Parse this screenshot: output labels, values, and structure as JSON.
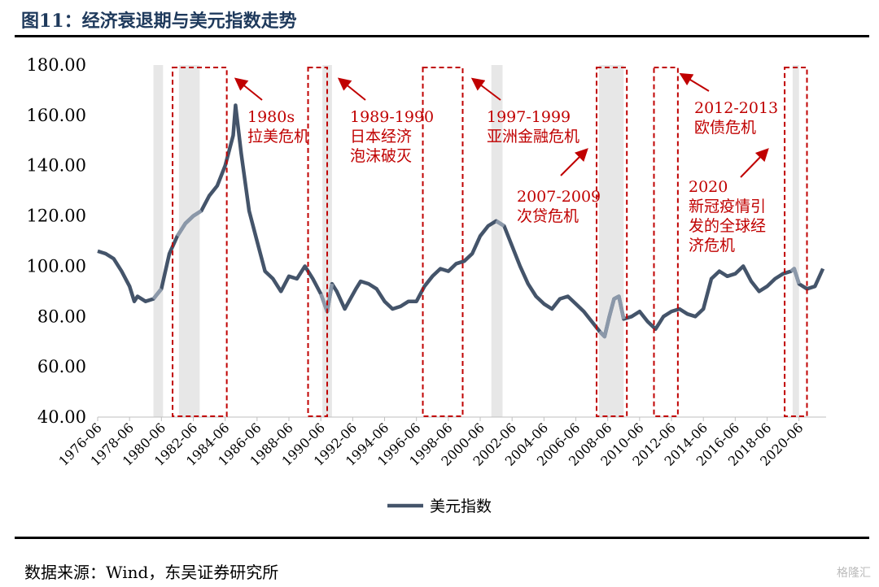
{
  "title": "图11：经济衰退期与美元指数走势",
  "source": "数据来源：Wind，东吴证券研究所",
  "watermark": "格隆汇",
  "colors": {
    "line": "#44546a",
    "line_light": "#8b98a9",
    "shade": "#e7e7e7",
    "box": "#c00000",
    "annot": "#c00000"
  },
  "chart_data": {
    "type": "line",
    "title": "",
    "xlabel": "",
    "ylabel": "",
    "ylim": [
      40,
      180
    ],
    "yticks": [
      "40.00",
      "60.00",
      "80.00",
      "100.00",
      "120.00",
      "140.00",
      "160.00",
      "180.00"
    ],
    "xlim": [
      1976.5,
      2022.2
    ],
    "xticks": [
      "1976-06",
      "1978-06",
      "1980-06",
      "1982-06",
      "1984-06",
      "1986-06",
      "1988-06",
      "1990-06",
      "1992-06",
      "1994-06",
      "1996-06",
      "1998-06",
      "2000-06",
      "2002-06",
      "2004-06",
      "2006-06",
      "2008-06",
      "2010-06",
      "2012-06",
      "2014-06",
      "2016-06",
      "2018-06",
      "2020-06"
    ],
    "legend": "bottom-center",
    "series": [
      {
        "name": "美元指数",
        "x": [
          1976.5,
          1977.0,
          1977.5,
          1978.0,
          1978.5,
          1978.8,
          1979.0,
          1979.5,
          1980.0,
          1980.5,
          1981.0,
          1981.5,
          1982.0,
          1982.5,
          1983.0,
          1983.5,
          1984.0,
          1984.5,
          1985.0,
          1985.15,
          1985.5,
          1986.0,
          1986.5,
          1987.0,
          1987.5,
          1988.0,
          1988.5,
          1989.0,
          1989.5,
          1990.0,
          1990.5,
          1990.9,
          1991.2,
          1991.5,
          1992.0,
          1992.7,
          1993.0,
          1993.5,
          1994.0,
          1994.5,
          1995.0,
          1995.5,
          1996.0,
          1996.5,
          1997.0,
          1997.5,
          1998.0,
          1998.5,
          1999.0,
          1999.5,
          2000.0,
          2000.5,
          2001.0,
          2001.5,
          2002.0,
          2002.5,
          2003.0,
          2003.5,
          2004.0,
          2004.5,
          2005.0,
          2005.5,
          2006.0,
          2006.5,
          2007.0,
          2007.5,
          2008.0,
          2008.3,
          2008.6,
          2008.9,
          2009.2,
          2009.5,
          2010.0,
          2010.5,
          2011.0,
          2011.5,
          2012.0,
          2012.5,
          2013.0,
          2013.5,
          2014.0,
          2014.5,
          2015.0,
          2015.5,
          2016.0,
          2016.5,
          2017.0,
          2017.5,
          2018.0,
          2018.5,
          2019.0,
          2019.5,
          2020.0,
          2020.2,
          2020.5,
          2021.0,
          2021.5,
          2022.0
        ],
        "values": [
          106,
          105,
          103,
          98,
          92,
          86,
          88,
          86,
          87,
          91,
          105,
          112,
          117,
          120,
          122,
          128,
          132,
          140,
          152,
          164,
          145,
          122,
          110,
          98,
          95,
          90,
          96,
          95,
          100,
          95,
          89,
          82,
          93,
          90,
          83,
          91,
          94,
          93,
          91,
          86,
          83,
          84,
          86,
          86,
          92,
          96,
          99,
          98,
          101,
          102,
          105,
          112,
          116,
          118,
          116,
          108,
          100,
          93,
          88,
          85,
          83,
          87,
          88,
          85,
          82,
          78,
          74,
          72,
          80,
          87,
          88,
          79,
          80,
          82,
          78,
          75,
          80,
          82,
          83,
          81,
          80,
          83,
          95,
          98,
          96,
          97,
          100,
          94,
          90,
          92,
          95,
          97,
          98,
          99,
          93,
          91,
          92,
          99
        ]
      }
    ],
    "recession_shading": [
      [
        1980.0,
        1980.6
      ],
      [
        1981.6,
        1982.9
      ],
      [
        1990.6,
        1991.2
      ],
      [
        2001.2,
        2001.9
      ],
      [
        2007.95,
        2009.5
      ],
      [
        2020.1,
        2020.5
      ]
    ],
    "highlight_boxes": [
      [
        1981.2,
        1984.6
      ],
      [
        1989.7,
        1990.9
      ],
      [
        1996.9,
        1999.4
      ],
      [
        2007.8,
        2009.7
      ],
      [
        2011.4,
        2012.9
      ],
      [
        2019.6,
        2021.0
      ]
    ],
    "annotations": [
      {
        "lines": [
          "1980s",
          "拉美危机"
        ]
      },
      {
        "lines": [
          "1989-1990",
          "日本经济",
          "泡沫破灭"
        ]
      },
      {
        "lines": [
          "1997-1999",
          "亚洲金融危机"
        ]
      },
      {
        "lines": [
          "2007-2009",
          "次贷危机"
        ]
      },
      {
        "lines": [
          "2012-2013",
          "欧债危机"
        ]
      },
      {
        "lines": [
          "2020",
          "新冠疫情引",
          "发的全球经",
          "济危机"
        ]
      }
    ]
  }
}
